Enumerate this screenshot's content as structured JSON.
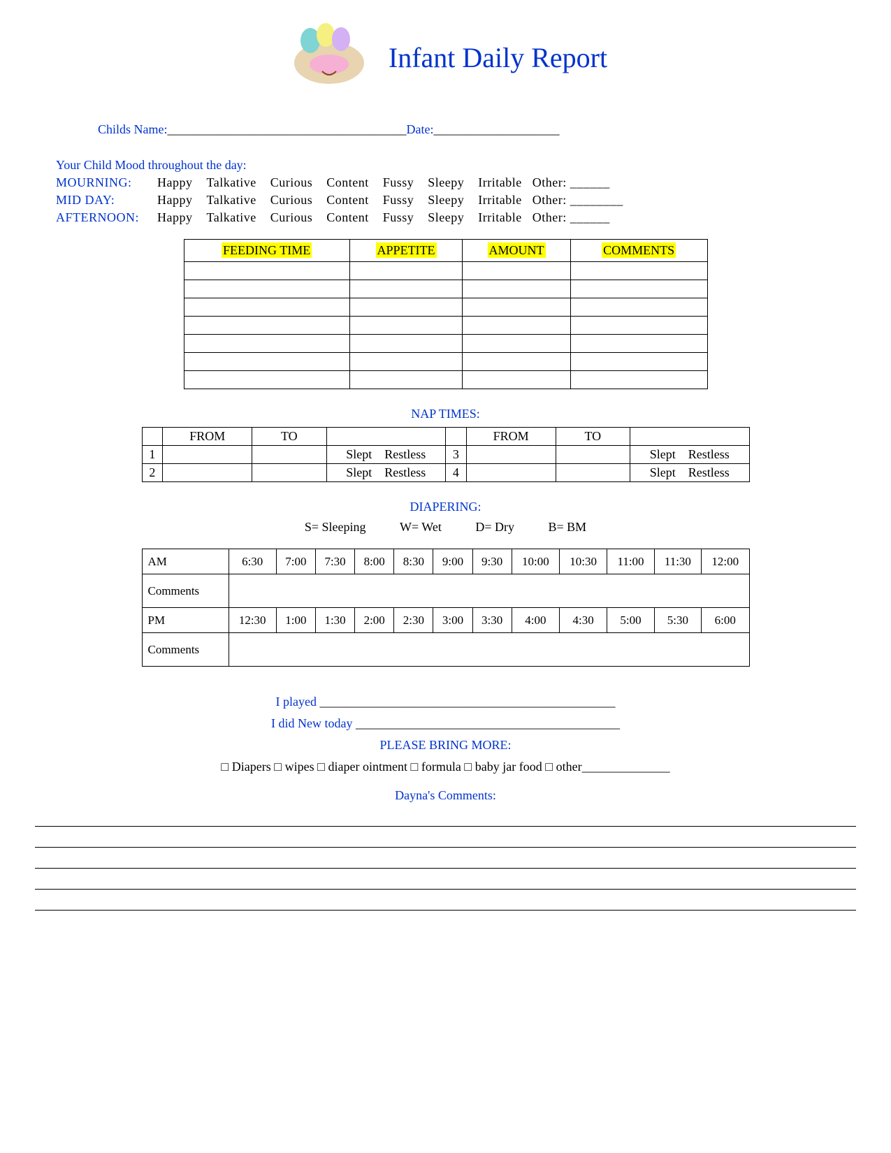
{
  "title": "Infant Daily Report",
  "header": {
    "childs_name_label": "Childs Name:",
    "childs_name_line": "______________________________________",
    "date_label": "Date:",
    "date_line": "____________________"
  },
  "mood": {
    "heading": "Your Child Mood throughout the day:",
    "rows": [
      {
        "label": "MOURNING:",
        "other_line": "______"
      },
      {
        "label": "MID DAY:",
        "other_line": "________"
      },
      {
        "label": "AFTERNOON:",
        "other_line": "______"
      }
    ],
    "options": [
      "Happy",
      "Talkative",
      "Curious",
      "Content",
      "Fussy",
      "Sleepy",
      "Irritable"
    ],
    "other_label": "Other:"
  },
  "feeding": {
    "headers": [
      "FEEDING TIME",
      "APPETITE",
      "AMOUNT",
      "COMMENTS"
    ],
    "empty_rows": 7,
    "highlight_bg": "#ffff00"
  },
  "nap": {
    "heading": "NAP TIMES:",
    "col_from": "FROM",
    "col_to": "TO",
    "quality": "Slept    Restless",
    "rows": [
      {
        "n": "1",
        "n2": "3"
      },
      {
        "n": "2",
        "n2": "4"
      }
    ]
  },
  "diapering": {
    "heading": "DIAPERING:",
    "legend": {
      "s": "S= Sleeping",
      "w": "W=  Wet",
      "d": "D= Dry",
      "b": "B= BM"
    },
    "am_label": "AM",
    "pm_label": "PM",
    "comments_label": "Comments",
    "am_times": [
      "6:30",
      "7:00",
      "7:30",
      "8:00",
      "8:30",
      "9:00",
      "9:30",
      "10:00",
      "10:30",
      "11:00",
      "11:30",
      "12:00"
    ],
    "pm_times": [
      "12:30",
      "1:00",
      "1:30",
      "2:00",
      "2:30",
      "3:00",
      "3:30",
      "4:00",
      "4:30",
      "5:00",
      "5:30",
      "6:00"
    ]
  },
  "played": {
    "label": "I played",
    "line": "_______________________________________________"
  },
  "new_today": {
    "label": "I did New today",
    "line": "__________________________________________"
  },
  "bring_more": {
    "heading": "PLEASE BRING MORE:",
    "items": [
      "Diapers",
      "wipes",
      "diaper ointment",
      "formula",
      "baby jar food",
      "other"
    ],
    "other_line": "______________"
  },
  "comments": {
    "heading": "Dayna's Comments:",
    "line_count": 5
  },
  "colors": {
    "blue": "#0033cc",
    "highlight": "#ffff00",
    "text": "#000000",
    "background": "#ffffff"
  }
}
